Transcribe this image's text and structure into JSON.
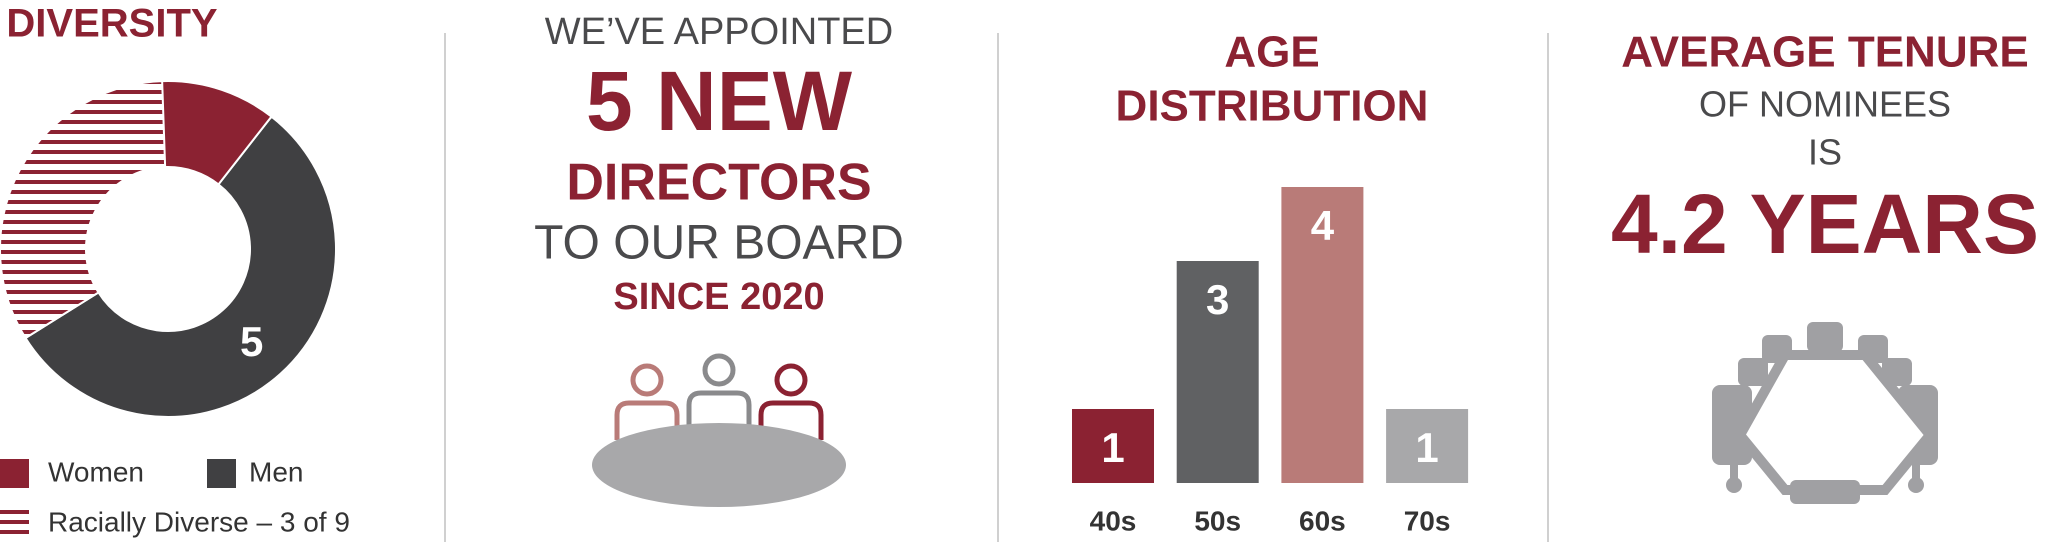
{
  "chart_data": [
    {
      "type": "pie",
      "title": "DIVERSITY",
      "categories": [
        "Women",
        "Men"
      ],
      "values": [
        4,
        5
      ],
      "colors": [
        "#8b2232",
        "#404042"
      ],
      "hatch": {
        "name": "Racially Diverse – 3 of 9",
        "value": 3,
        "color": "#8b2232"
      }
    },
    {
      "type": "bar",
      "title_lines": [
        "AGE",
        "DISTRIBUTION"
      ],
      "categories": [
        "40s",
        "50s",
        "60s",
        "70s"
      ],
      "values": [
        1,
        3,
        4,
        1
      ],
      "colors": [
        "#8b2232",
        "#606163",
        "#b97b78",
        "#a8a8aa"
      ]
    }
  ],
  "appointment": {
    "lines": [
      "WE’VE  APPOINTED",
      "5 NEW",
      "DIRECTORS",
      "TO OUR BOARD",
      "SINCE 2020"
    ]
  },
  "tenure": {
    "lines": [
      "AVERAGE TENURE",
      "OF NOMINEES",
      "IS",
      "4.2 YEARS"
    ]
  }
}
